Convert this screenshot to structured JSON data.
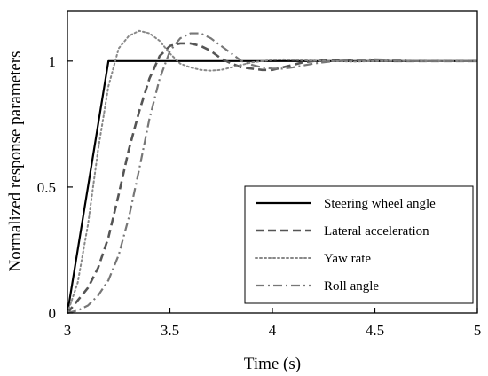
{
  "chart_data": {
    "type": "line",
    "title": "",
    "xlabel": "Time (s)",
    "ylabel": "Normalized response parameters",
    "xlim": [
      3,
      5
    ],
    "ylim": [
      0,
      1.2
    ],
    "xticks": [
      3,
      3.5,
      4,
      4.5,
      5
    ],
    "xtick_labels": [
      "3",
      "3.5",
      "4",
      "4.5",
      "5"
    ],
    "yticks": [
      0,
      0.5,
      1
    ],
    "ytick_labels": [
      "0",
      "0.5",
      "1"
    ],
    "grid": false,
    "legend_position": "bottom-right",
    "series": [
      {
        "name": "Steering wheel angle",
        "style": "solid",
        "color": "#000000",
        "x": [
          3.0,
          3.2,
          5.0
        ],
        "y": [
          0.0,
          1.0,
          1.0
        ]
      },
      {
        "name": "Lateral acceleration",
        "style": "dashed",
        "color": "#555555",
        "x": [
          3.0,
          3.05,
          3.1,
          3.15,
          3.2,
          3.25,
          3.3,
          3.35,
          3.4,
          3.45,
          3.5,
          3.55,
          3.6,
          3.65,
          3.7,
          3.75,
          3.8,
          3.85,
          3.9,
          3.95,
          4.0,
          4.05,
          4.1,
          4.15,
          4.2,
          4.3,
          4.4,
          4.5,
          4.6,
          4.7,
          4.8,
          5.0
        ],
        "y": [
          0.0,
          0.05,
          0.1,
          0.18,
          0.3,
          0.47,
          0.65,
          0.8,
          0.93,
          1.02,
          1.06,
          1.07,
          1.07,
          1.06,
          1.04,
          1.01,
          0.99,
          0.975,
          0.97,
          0.965,
          0.965,
          0.975,
          0.985,
          0.995,
          1.0,
          1.005,
          1.005,
          1.002,
          1.0,
          1.0,
          1.0,
          1.0
        ]
      },
      {
        "name": "Yaw rate",
        "style": "dotted",
        "color": "#888888",
        "x": [
          3.0,
          3.05,
          3.1,
          3.15,
          3.2,
          3.25,
          3.3,
          3.35,
          3.4,
          3.45,
          3.5,
          3.55,
          3.6,
          3.65,
          3.7,
          3.75,
          3.8,
          3.85,
          3.9,
          3.95,
          4.0,
          4.05,
          4.1,
          4.2,
          4.3,
          4.4,
          4.5,
          4.6,
          4.7,
          5.0
        ],
        "y": [
          0.0,
          0.12,
          0.35,
          0.65,
          0.9,
          1.05,
          1.1,
          1.12,
          1.11,
          1.08,
          1.03,
          0.99,
          0.975,
          0.965,
          0.962,
          0.965,
          0.975,
          0.985,
          0.995,
          1.0,
          1.005,
          1.007,
          1.005,
          1.002,
          1.0,
          0.998,
          1.0,
          1.001,
          1.0,
          1.0
        ]
      },
      {
        "name": "Roll angle",
        "style": "dashdot",
        "color": "#777777",
        "x": [
          3.0,
          3.05,
          3.1,
          3.15,
          3.2,
          3.25,
          3.3,
          3.35,
          3.4,
          3.45,
          3.5,
          3.55,
          3.6,
          3.65,
          3.7,
          3.75,
          3.8,
          3.85,
          3.9,
          3.95,
          4.0,
          4.05,
          4.1,
          4.2,
          4.3,
          4.4,
          4.5,
          4.6,
          4.7,
          4.8,
          5.0
        ],
        "y": [
          0.0,
          0.01,
          0.03,
          0.07,
          0.13,
          0.23,
          0.38,
          0.57,
          0.77,
          0.93,
          1.04,
          1.09,
          1.11,
          1.11,
          1.09,
          1.06,
          1.03,
          1.0,
          0.985,
          0.975,
          0.97,
          0.97,
          0.975,
          0.99,
          1.0,
          1.005,
          1.007,
          1.005,
          1.0,
          1.0,
          1.0
        ]
      }
    ]
  }
}
